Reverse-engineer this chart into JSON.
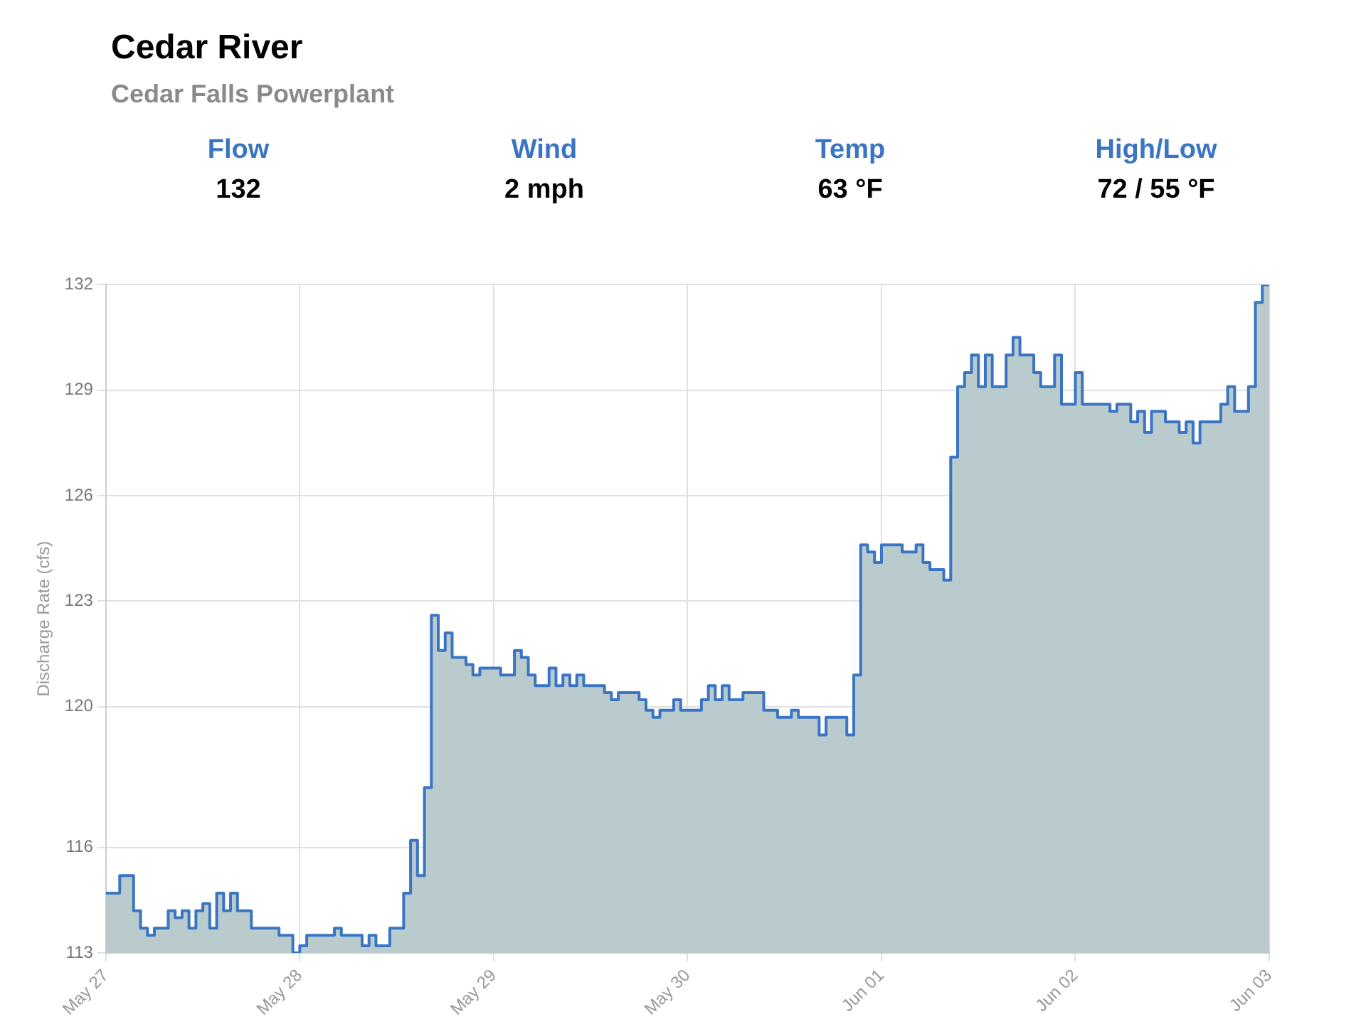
{
  "chart_data": {
    "type": "step",
    "title": "Cedar River",
    "subtitle": "Cedar Falls Powerplant",
    "annotations": [
      "Flow",
      "132",
      "Wind",
      "2 mph",
      "Temp",
      "63 °F",
      "High/Low",
      "72 / 55 °F"
    ],
    "ylabel": "Discharge Rate (cfs)",
    "categories": [
      "May 27",
      null,
      null,
      null,
      null,
      null,
      null,
      null,
      null,
      null,
      null,
      null,
      null,
      null,
      null,
      null,
      null,
      null,
      null,
      null,
      null,
      null,
      null,
      null,
      null,
      null,
      null,
      null,
      "May 28",
      null,
      null,
      null,
      null,
      null,
      null,
      null,
      null,
      null,
      null,
      null,
      null,
      null,
      null,
      null,
      null,
      null,
      null,
      null,
      null,
      null,
      null,
      null,
      null,
      null,
      null,
      null,
      "May 29",
      null,
      null,
      null,
      null,
      null,
      null,
      null,
      null,
      null,
      null,
      null,
      null,
      null,
      null,
      null,
      null,
      null,
      null,
      null,
      null,
      null,
      null,
      null,
      null,
      null,
      null,
      null,
      "May 30",
      null,
      null,
      null,
      null,
      null,
      null,
      null,
      null,
      null,
      null,
      null,
      null,
      null,
      null,
      null,
      null,
      null,
      null,
      null,
      null,
      null,
      null,
      null,
      null,
      null,
      null,
      null,
      "Jun 01",
      null,
      null,
      null,
      null,
      null,
      null,
      null,
      null,
      null,
      null,
      null,
      null,
      null,
      null,
      null,
      null,
      null,
      null,
      null,
      null,
      null,
      null,
      null,
      null,
      null,
      null,
      null,
      "Jun 02",
      null,
      null,
      null,
      null,
      null,
      null,
      null,
      null,
      null,
      null,
      null,
      null,
      null,
      null,
      null,
      null,
      null,
      null,
      null,
      null,
      null,
      null,
      null,
      null,
      null,
      null,
      null,
      "Jun 03"
    ],
    "series": [
      {
        "color": "#3a75c4",
        "values": [
          114.7,
          114.7,
          115.2,
          115.2,
          114.2,
          113.7,
          113.5,
          113.7,
          113.7,
          114.2,
          114.0,
          114.2,
          113.7,
          114.2,
          114.4,
          113.7,
          114.7,
          114.2,
          114.7,
          114.2,
          114.2,
          113.7,
          113.7,
          113.7,
          113.7,
          113.5,
          113.5,
          113.0,
          113.2,
          113.5,
          113.5,
          113.5,
          113.5,
          113.7,
          113.5,
          113.5,
          113.5,
          113.2,
          113.5,
          113.2,
          113.2,
          113.7,
          113.7,
          114.7,
          116.2,
          115.2,
          117.7,
          122.6,
          121.6,
          122.1,
          121.4,
          121.4,
          121.2,
          120.9,
          121.1,
          121.1,
          121.1,
          120.9,
          120.9,
          121.6,
          121.4,
          120.9,
          120.6,
          120.6,
          121.1,
          120.6,
          120.9,
          120.6,
          120.9,
          120.6,
          120.6,
          120.6,
          120.4,
          120.2,
          120.4,
          120.4,
          120.4,
          120.2,
          119.9,
          119.7,
          119.9,
          119.9,
          120.2,
          119.9,
          119.9,
          119.9,
          120.2,
          120.6,
          120.2,
          120.6,
          120.2,
          120.2,
          120.4,
          120.4,
          120.4,
          119.9,
          119.9,
          119.7,
          119.7,
          119.9,
          119.7,
          119.7,
          119.7,
          119.2,
          119.7,
          119.7,
          119.7,
          119.2,
          120.9,
          124.6,
          124.4,
          124.1,
          124.6,
          124.6,
          124.6,
          124.4,
          124.4,
          124.6,
          124.1,
          123.9,
          123.9,
          123.6,
          127.1,
          129.1,
          129.5,
          130.0,
          129.1,
          130.0,
          129.1,
          129.1,
          130.0,
          130.5,
          130.0,
          130.0,
          129.5,
          129.1,
          129.1,
          130.0,
          128.6,
          128.6,
          129.5,
          128.6,
          128.6,
          128.6,
          128.6,
          128.4,
          128.6,
          128.6,
          128.1,
          128.4,
          127.8,
          128.4,
          128.4,
          128.1,
          128.1,
          127.8,
          128.1,
          127.5,
          128.1,
          128.1,
          128.1,
          128.6,
          129.1,
          128.4,
          128.4,
          129.1,
          131.5,
          132,
          132
        ]
      }
    ],
    "ylim": [
      113,
      132
    ],
    "yticks": [
      113,
      116,
      120,
      123,
      126,
      129,
      132
    ],
    "grid": true,
    "marker": "none"
  }
}
